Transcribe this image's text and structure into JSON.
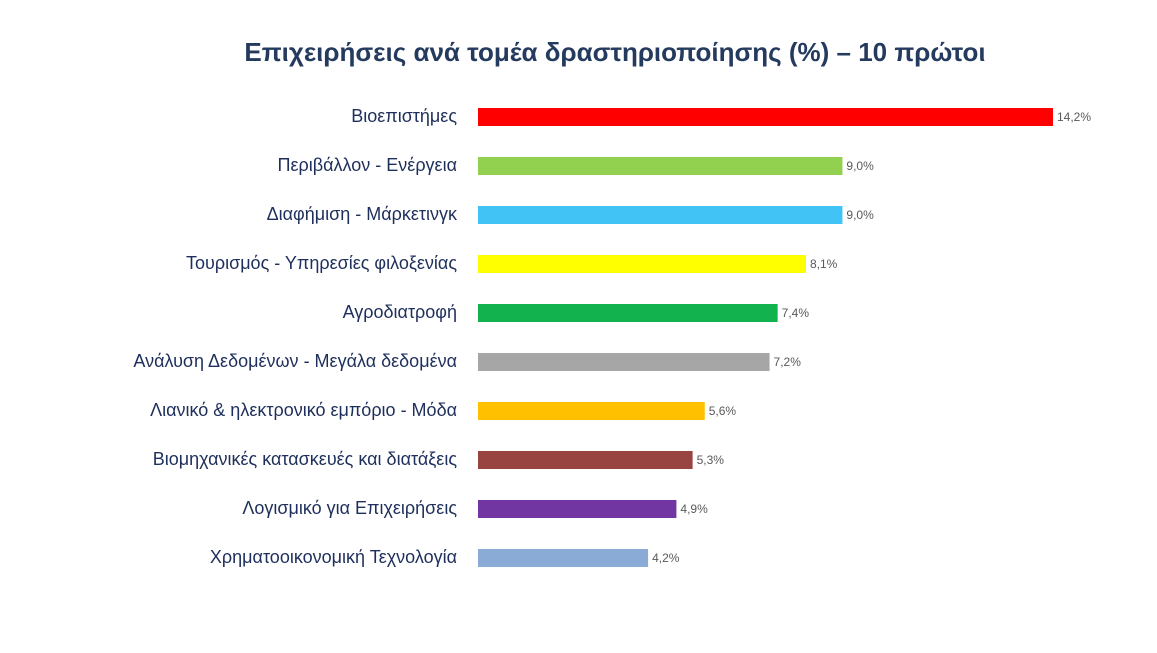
{
  "chart_data": {
    "type": "bar",
    "orientation": "horizontal",
    "title": "Επιχειρήσεις ανά τομέα δραστηριοποίησης (%) – 10 πρώτοι",
    "categories": [
      "Βιοεπιστήμες",
      "Περιβάλλον - Ενέργεια",
      "Διαφήμιση - Μάρκετινγκ",
      "Τουρισμός - Υπηρεσίες φιλοξενίας",
      "Αγροδιατροφή",
      "Ανάλυση Δεδομένων - Μεγάλα δεδομένα",
      "Λιανικό & ηλεκτρονικό εμπόριο - Μόδα",
      "Βιομηχανικές κατασκευές και διατάξεις",
      "Λογισμικό για Επιχειρήσεις",
      "Χρηματοοικονομική Τεχνολογία"
    ],
    "values": [
      14.2,
      9.0,
      9.0,
      8.1,
      7.4,
      7.2,
      5.6,
      5.3,
      4.9,
      4.2
    ],
    "value_labels": [
      "14,2%",
      "9,0%",
      "9,0%",
      "8,1%",
      "7,4%",
      "7,2%",
      "5,6%",
      "5,3%",
      "4,9%",
      "4,2%"
    ],
    "colors": [
      "#ff0000",
      "#92d050",
      "#41c4f5",
      "#ffff00",
      "#12b24f",
      "#a6a6a6",
      "#ffc000",
      "#984440",
      "#7236a2",
      "#8aabd6"
    ]
  }
}
